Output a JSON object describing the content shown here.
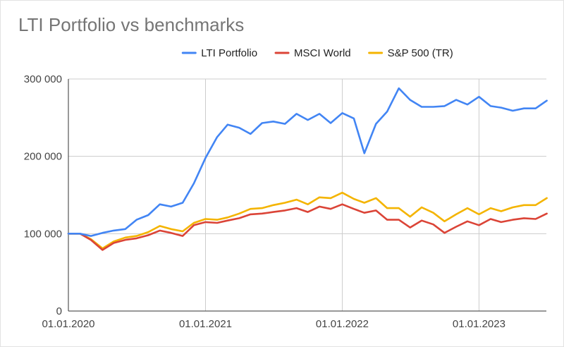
{
  "chart_data": {
    "type": "line",
    "title": "LTI Portfolio vs benchmarks",
    "xlabel": "",
    "ylabel": "",
    "legend_position": "top",
    "grid": true,
    "x_range": [
      "2020-01-01",
      "2023-07-01"
    ],
    "ylim": [
      0,
      300000
    ],
    "x_ticks": [
      "01.01.2020",
      "01.01.2021",
      "01.01.2022",
      "01.01.2023"
    ],
    "y_ticks": [
      "0",
      "100 000",
      "200 000",
      "300 000"
    ],
    "x": [
      "2020-01",
      "2020-02",
      "2020-03",
      "2020-04",
      "2020-05",
      "2020-06",
      "2020-07",
      "2020-08",
      "2020-09",
      "2020-10",
      "2020-11",
      "2020-12",
      "2021-01",
      "2021-02",
      "2021-03",
      "2021-04",
      "2021-05",
      "2021-06",
      "2021-07",
      "2021-08",
      "2021-09",
      "2021-10",
      "2021-11",
      "2021-12",
      "2022-01",
      "2022-02",
      "2022-03",
      "2022-04",
      "2022-05",
      "2022-06",
      "2022-07",
      "2022-08",
      "2022-09",
      "2022-10",
      "2022-11",
      "2022-12",
      "2023-01",
      "2023-02",
      "2023-03",
      "2023-04",
      "2023-05",
      "2023-06",
      "2023-07"
    ],
    "series": [
      {
        "name": "LTI Portfolio",
        "color": "#4285f4",
        "values": [
          100000,
          100000,
          97000,
          101000,
          104000,
          106000,
          118000,
          124000,
          138000,
          135000,
          140000,
          165000,
          198000,
          225000,
          241000,
          237000,
          229000,
          243000,
          245000,
          242000,
          255000,
          247000,
          255000,
          243000,
          256000,
          249000,
          204000,
          242000,
          258000,
          288000,
          273000,
          264000,
          264000,
          265000,
          273000,
          267000,
          277000,
          265000,
          263000,
          259000,
          262000,
          262000,
          272000
        ]
      },
      {
        "name": "MSCI World",
        "color": "#db4437",
        "values": [
          100000,
          100000,
          92000,
          79000,
          88000,
          92000,
          94000,
          98000,
          104000,
          101000,
          97000,
          111000,
          115000,
          114000,
          117000,
          120000,
          125000,
          126000,
          128000,
          130000,
          133000,
          128000,
          135000,
          132000,
          138000,
          132000,
          127000,
          130000,
          118000,
          118000,
          108000,
          117000,
          112000,
          101000,
          109000,
          116000,
          111000,
          119000,
          115000,
          118000,
          120000,
          119000,
          126000
        ]
      },
      {
        "name": "S&P 500 (TR)",
        "color": "#f4b400",
        "values": [
          100000,
          100000,
          93000,
          81000,
          90000,
          95000,
          97000,
          102000,
          110000,
          106000,
          103000,
          114000,
          119000,
          118000,
          121000,
          126000,
          132000,
          133000,
          137000,
          140000,
          144000,
          138000,
          147000,
          146000,
          153000,
          145000,
          140000,
          146000,
          133000,
          133000,
          122000,
          134000,
          127000,
          116000,
          125000,
          133000,
          125000,
          133000,
          129000,
          134000,
          137000,
          137000,
          146000
        ]
      }
    ]
  }
}
